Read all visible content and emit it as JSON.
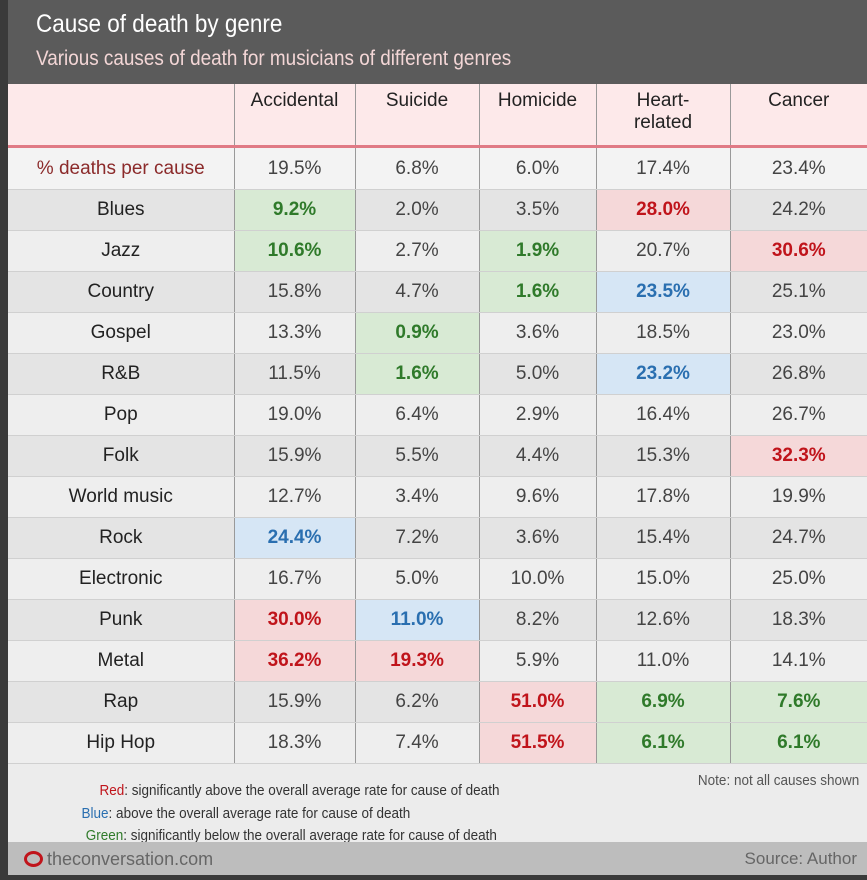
{
  "chart_data": {
    "type": "table",
    "title": "Cause of death by genre",
    "subtitle": "Various causes of death for musicians of different genres",
    "columns": [
      "Accidental",
      "Suicide",
      "Homicide",
      "Heart-related",
      "Cancer"
    ],
    "average_row": {
      "label": "% deaths per cause",
      "values": [
        "19.5%",
        "6.8%",
        "6.0%",
        "17.4%",
        "23.4%"
      ]
    },
    "rows": [
      {
        "genre": "Blues",
        "values": [
          "9.2%",
          "2.0%",
          "3.5%",
          "28.0%",
          "24.2%"
        ],
        "highlight": [
          "g",
          "",
          "",
          "r",
          ""
        ]
      },
      {
        "genre": "Jazz",
        "values": [
          "10.6%",
          "2.7%",
          "1.9%",
          "20.7%",
          "30.6%"
        ],
        "highlight": [
          "g",
          "",
          "g",
          "",
          "r"
        ]
      },
      {
        "genre": "Country",
        "values": [
          "15.8%",
          "4.7%",
          "1.6%",
          "23.5%",
          "25.1%"
        ],
        "highlight": [
          "",
          "",
          "g",
          "b",
          ""
        ]
      },
      {
        "genre": "Gospel",
        "values": [
          "13.3%",
          "0.9%",
          "3.6%",
          "18.5%",
          "23.0%"
        ],
        "highlight": [
          "",
          "g",
          "",
          "",
          ""
        ]
      },
      {
        "genre": "R&B",
        "values": [
          "11.5%",
          "1.6%",
          "5.0%",
          "23.2%",
          "26.8%"
        ],
        "highlight": [
          "",
          "g",
          "",
          "b",
          ""
        ]
      },
      {
        "genre": "Pop",
        "values": [
          "19.0%",
          "6.4%",
          "2.9%",
          "16.4%",
          "26.7%"
        ],
        "highlight": [
          "",
          "",
          "",
          "",
          ""
        ]
      },
      {
        "genre": "Folk",
        "values": [
          "15.9%",
          "5.5%",
          "4.4%",
          "15.3%",
          "32.3%"
        ],
        "highlight": [
          "",
          "",
          "",
          "",
          "r"
        ]
      },
      {
        "genre": "World music",
        "values": [
          "12.7%",
          "3.4%",
          "9.6%",
          "17.8%",
          "19.9%"
        ],
        "highlight": [
          "",
          "",
          "",
          "",
          ""
        ]
      },
      {
        "genre": "Rock",
        "values": [
          "24.4%",
          "7.2%",
          "3.6%",
          "15.4%",
          "24.7%"
        ],
        "highlight": [
          "b",
          "",
          "",
          "",
          ""
        ]
      },
      {
        "genre": "Electronic",
        "values": [
          "16.7%",
          "5.0%",
          "10.0%",
          "15.0%",
          "25.0%"
        ],
        "highlight": [
          "",
          "",
          "",
          "",
          ""
        ]
      },
      {
        "genre": "Punk",
        "values": [
          "30.0%",
          "11.0%",
          "8.2%",
          "12.6%",
          "18.3%"
        ],
        "highlight": [
          "r",
          "b",
          "",
          "",
          ""
        ]
      },
      {
        "genre": "Metal",
        "values": [
          "36.2%",
          "19.3%",
          "5.9%",
          "11.0%",
          "14.1%"
        ],
        "highlight": [
          "r",
          "r",
          "",
          "",
          ""
        ]
      },
      {
        "genre": "Rap",
        "values": [
          "15.9%",
          "6.2%",
          "51.0%",
          "6.9%",
          "7.6%"
        ],
        "highlight": [
          "",
          "",
          "r",
          "g",
          "g"
        ]
      },
      {
        "genre": "Hip Hop",
        "values": [
          "18.3%",
          "7.4%",
          "51.5%",
          "6.1%",
          "6.1%"
        ],
        "highlight": [
          "",
          "",
          "r",
          "g",
          "g"
        ]
      }
    ]
  },
  "legend": {
    "red_key": "Red",
    "red_text": ": significantly above the overall average rate for cause of death",
    "blue_key": "Blue",
    "blue_text": ": above the overall average rate for cause of death",
    "green_key": "Green",
    "green_text": ": significantly below the overall average rate for cause of death",
    "note": "Note: not all causes shown"
  },
  "footer": {
    "site": "theconversation.com",
    "source": "Source: Author"
  },
  "colors": {
    "red": "#c0141b",
    "blue": "#2a6fb0",
    "green": "#2f7a2a"
  }
}
